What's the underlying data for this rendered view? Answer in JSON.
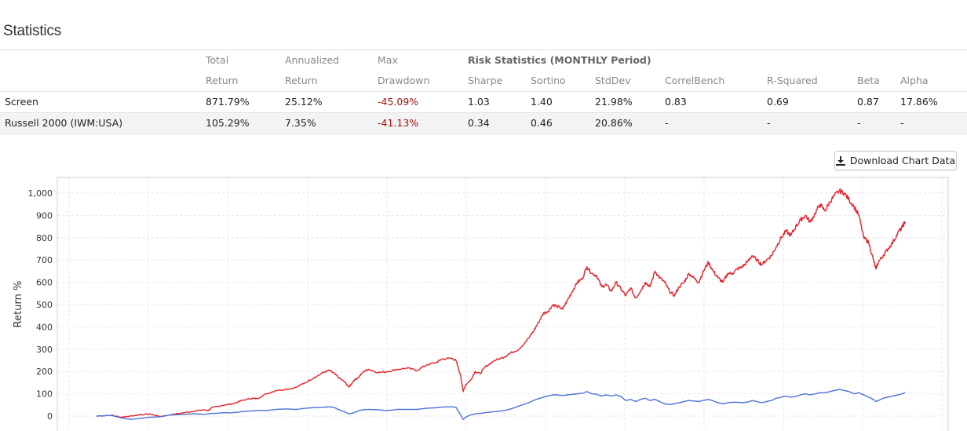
{
  "statistics": {
    "title": "Statistics",
    "headers": {
      "total": [
        "Total",
        "Return"
      ],
      "annualized": [
        "Annualized",
        "Return"
      ],
      "max": [
        "Max",
        "Drawdown"
      ],
      "risk_group": "Risk Statistics (MONTHLY Period)",
      "sharpe": "Sharpe",
      "sortino": "Sortino",
      "stddev": "StdDev",
      "correl": "CorrelBench",
      "rsq": "R-Squared",
      "beta": "Beta",
      "alpha": "Alpha"
    },
    "rows": [
      {
        "name": "Screen",
        "total": "871.79%",
        "annualized": "25.12%",
        "drawdown": "-45.09%",
        "sharpe": "1.03",
        "sortino": "1.40",
        "stddev": "21.98%",
        "correl": "0.83",
        "rsq": "0.69",
        "beta": "0.87",
        "alpha": "17.86%"
      },
      {
        "name": "Russell 2000 (IWM:USA)",
        "total": "105.29%",
        "annualized": "7.35%",
        "drawdown": "-41.13%",
        "sharpe": "0.34",
        "sortino": "0.46",
        "stddev": "20.86%",
        "correl": "-",
        "rsq": "-",
        "beta": "-",
        "alpha": "-"
      }
    ]
  },
  "toolbar": {
    "download_label": "Download Chart Data",
    "download_icon": "download-icon"
  },
  "chart_data": {
    "type": "line",
    "ylabel": "Return %",
    "ylim": [
      -30,
      1040
    ],
    "yticks": [
      0,
      100,
      200,
      300,
      400,
      500,
      600,
      700,
      800,
      900,
      1000
    ],
    "ytick_labels": [
      "0",
      "100",
      "200",
      "300",
      "400",
      "500",
      "600",
      "700",
      "800",
      "900",
      "1,000"
    ],
    "grid": true,
    "colors": {
      "screen": "#e8202a",
      "benchmark": "#4e72d8"
    },
    "series": [
      {
        "key": "screen",
        "values": [
          [
            0,
            0
          ],
          [
            6,
            4
          ],
          [
            10,
            -5
          ],
          [
            16,
            3
          ],
          [
            22,
            10
          ],
          [
            26,
            -2
          ],
          [
            30,
            5
          ],
          [
            36,
            15
          ],
          [
            40,
            22
          ],
          [
            44,
            28
          ],
          [
            46,
            25
          ],
          [
            48,
            40
          ],
          [
            52,
            48
          ],
          [
            56,
            55
          ],
          [
            60,
            70
          ],
          [
            64,
            80
          ],
          [
            66,
            78
          ],
          [
            70,
            100
          ],
          [
            74,
            115
          ],
          [
            78,
            120
          ],
          [
            82,
            128
          ],
          [
            86,
            150
          ],
          [
            90,
            175
          ],
          [
            94,
            198
          ],
          [
            96,
            205
          ],
          [
            98,
            190
          ],
          [
            100,
            170
          ],
          [
            102,
            155
          ],
          [
            104,
            130
          ],
          [
            106,
            160
          ],
          [
            108,
            175
          ],
          [
            110,
            200
          ],
          [
            112,
            210
          ],
          [
            116,
            195
          ],
          [
            120,
            200
          ],
          [
            124,
            210
          ],
          [
            128,
            215
          ],
          [
            132,
            205
          ],
          [
            136,
            230
          ],
          [
            140,
            240
          ],
          [
            142,
            255
          ],
          [
            146,
            260
          ],
          [
            148,
            250
          ],
          [
            150,
            180
          ],
          [
            151,
            110
          ],
          [
            152,
            140
          ],
          [
            154,
            160
          ],
          [
            156,
            200
          ],
          [
            158,
            190
          ],
          [
            160,
            220
          ],
          [
            164,
            250
          ],
          [
            168,
            265
          ],
          [
            170,
            280
          ],
          [
            174,
            300
          ],
          [
            178,
            350
          ],
          [
            180,
            380
          ],
          [
            182,
            420
          ],
          [
            184,
            460
          ],
          [
            186,
            470
          ],
          [
            188,
            500
          ],
          [
            190,
            490
          ],
          [
            192,
            480
          ],
          [
            194,
            520
          ],
          [
            196,
            560
          ],
          [
            198,
            600
          ],
          [
            200,
            615
          ],
          [
            202,
            670
          ],
          [
            204,
            640
          ],
          [
            206,
            630
          ],
          [
            208,
            580
          ],
          [
            210,
            590
          ],
          [
            212,
            560
          ],
          [
            214,
            600
          ],
          [
            216,
            570
          ],
          [
            218,
            540
          ],
          [
            220,
            575
          ],
          [
            222,
            530
          ],
          [
            224,
            560
          ],
          [
            226,
            600
          ],
          [
            228,
            580
          ],
          [
            230,
            650
          ],
          [
            232,
            620
          ],
          [
            234,
            600
          ],
          [
            236,
            560
          ],
          [
            238,
            540
          ],
          [
            240,
            580
          ],
          [
            242,
            600
          ],
          [
            244,
            640
          ],
          [
            246,
            620
          ],
          [
            248,
            600
          ],
          [
            250,
            650
          ],
          [
            252,
            690
          ],
          [
            254,
            650
          ],
          [
            256,
            620
          ],
          [
            258,
            600
          ],
          [
            260,
            640
          ],
          [
            262,
            640
          ],
          [
            264,
            660
          ],
          [
            266,
            670
          ],
          [
            268,
            690
          ],
          [
            270,
            720
          ],
          [
            272,
            700
          ],
          [
            274,
            680
          ],
          [
            276,
            700
          ],
          [
            278,
            720
          ],
          [
            280,
            760
          ],
          [
            282,
            800
          ],
          [
            284,
            830
          ],
          [
            286,
            810
          ],
          [
            288,
            850
          ],
          [
            290,
            880
          ],
          [
            292,
            900
          ],
          [
            294,
            870
          ],
          [
            296,
            910
          ],
          [
            298,
            950
          ],
          [
            300,
            920
          ],
          [
            302,
            960
          ],
          [
            304,
            990
          ],
          [
            306,
            1010
          ],
          [
            308,
            1000
          ],
          [
            310,
            970
          ],
          [
            312,
            940
          ],
          [
            314,
            900
          ],
          [
            316,
            800
          ],
          [
            318,
            780
          ],
          [
            320,
            700
          ],
          [
            321,
            660
          ],
          [
            322,
            690
          ],
          [
            324,
            720
          ],
          [
            326,
            750
          ],
          [
            328,
            780
          ],
          [
            330,
            820
          ],
          [
            332,
            850
          ],
          [
            333,
            872
          ]
        ]
      },
      {
        "key": "benchmark",
        "values": [
          [
            0,
            0
          ],
          [
            6,
            3
          ],
          [
            10,
            -8
          ],
          [
            14,
            -15
          ],
          [
            18,
            -10
          ],
          [
            22,
            -5
          ],
          [
            26,
            -3
          ],
          [
            30,
            5
          ],
          [
            36,
            8
          ],
          [
            40,
            10
          ],
          [
            44,
            8
          ],
          [
            48,
            12
          ],
          [
            52,
            15
          ],
          [
            56,
            15
          ],
          [
            60,
            20
          ],
          [
            66,
            25
          ],
          [
            70,
            25
          ],
          [
            74,
            30
          ],
          [
            78,
            32
          ],
          [
            82,
            30
          ],
          [
            86,
            35
          ],
          [
            90,
            38
          ],
          [
            94,
            40
          ],
          [
            96,
            42
          ],
          [
            98,
            38
          ],
          [
            100,
            28
          ],
          [
            102,
            20
          ],
          [
            104,
            10
          ],
          [
            106,
            15
          ],
          [
            108,
            25
          ],
          [
            110,
            28
          ],
          [
            112,
            30
          ],
          [
            116,
            28
          ],
          [
            120,
            25
          ],
          [
            124,
            30
          ],
          [
            128,
            30
          ],
          [
            132,
            30
          ],
          [
            136,
            35
          ],
          [
            140,
            38
          ],
          [
            142,
            40
          ],
          [
            146,
            42
          ],
          [
            148,
            40
          ],
          [
            150,
            5
          ],
          [
            151,
            -15
          ],
          [
            152,
            -5
          ],
          [
            154,
            5
          ],
          [
            156,
            10
          ],
          [
            158,
            12
          ],
          [
            160,
            15
          ],
          [
            164,
            20
          ],
          [
            168,
            25
          ],
          [
            170,
            30
          ],
          [
            174,
            45
          ],
          [
            178,
            60
          ],
          [
            180,
            70
          ],
          [
            182,
            78
          ],
          [
            184,
            85
          ],
          [
            186,
            90
          ],
          [
            188,
            95
          ],
          [
            190,
            95
          ],
          [
            192,
            92
          ],
          [
            194,
            95
          ],
          [
            196,
            98
          ],
          [
            198,
            100
          ],
          [
            200,
            102
          ],
          [
            202,
            110
          ],
          [
            204,
            100
          ],
          [
            206,
            98
          ],
          [
            208,
            90
          ],
          [
            210,
            95
          ],
          [
            212,
            90
          ],
          [
            214,
            95
          ],
          [
            216,
            88
          ],
          [
            218,
            70
          ],
          [
            220,
            75
          ],
          [
            222,
            65
          ],
          [
            224,
            75
          ],
          [
            226,
            80
          ],
          [
            228,
            70
          ],
          [
            230,
            75
          ],
          [
            232,
            65
          ],
          [
            234,
            55
          ],
          [
            236,
            52
          ],
          [
            238,
            55
          ],
          [
            240,
            60
          ],
          [
            242,
            65
          ],
          [
            244,
            70
          ],
          [
            246,
            68
          ],
          [
            248,
            65
          ],
          [
            250,
            70
          ],
          [
            252,
            75
          ],
          [
            254,
            68
          ],
          [
            256,
            60
          ],
          [
            258,
            55
          ],
          [
            260,
            60
          ],
          [
            262,
            62
          ],
          [
            264,
            62
          ],
          [
            266,
            60
          ],
          [
            268,
            62
          ],
          [
            270,
            70
          ],
          [
            272,
            65
          ],
          [
            274,
            60
          ],
          [
            276,
            65
          ],
          [
            278,
            70
          ],
          [
            280,
            80
          ],
          [
            282,
            85
          ],
          [
            284,
            90
          ],
          [
            286,
            85
          ],
          [
            288,
            88
          ],
          [
            290,
            95
          ],
          [
            292,
            100
          ],
          [
            294,
            95
          ],
          [
            296,
            100
          ],
          [
            298,
            105
          ],
          [
            300,
            105
          ],
          [
            302,
            110
          ],
          [
            304,
            115
          ],
          [
            306,
            120
          ],
          [
            308,
            115
          ],
          [
            310,
            110
          ],
          [
            312,
            100
          ],
          [
            314,
            105
          ],
          [
            316,
            95
          ],
          [
            318,
            85
          ],
          [
            320,
            75
          ],
          [
            321,
            65
          ],
          [
            322,
            70
          ],
          [
            324,
            80
          ],
          [
            326,
            85
          ],
          [
            328,
            90
          ],
          [
            330,
            95
          ],
          [
            332,
            100
          ],
          [
            333,
            105
          ]
        ]
      }
    ]
  }
}
